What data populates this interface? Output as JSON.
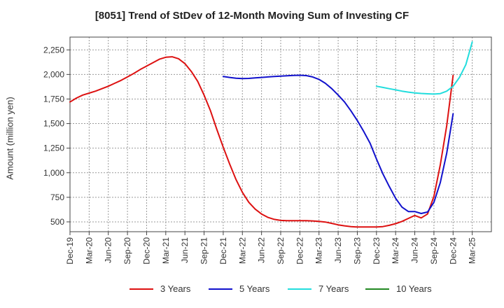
{
  "chart_data": {
    "type": "line",
    "title": "[8051]  Trend of StDev of 12-Month Moving Sum of Investing CF",
    "xlabel": "",
    "ylabel": "Amount (million yen)",
    "ylim": [
      400,
      2380
    ],
    "yticks": [
      500,
      750,
      1000,
      1250,
      1500,
      1750,
      2000,
      2250
    ],
    "ytick_labels": [
      "500",
      "750",
      "1,000",
      "1,250",
      "1,500",
      "1,750",
      "2,000",
      "2,250"
    ],
    "x_ticks": [
      "Dec-19",
      "Mar-20",
      "Jun-20",
      "Sep-20",
      "Dec-20",
      "Mar-21",
      "Jun-21",
      "Sep-21",
      "Dec-21",
      "Mar-22",
      "Jun-22",
      "Sep-22",
      "Dec-22",
      "Mar-23",
      "Jun-23",
      "Sep-23",
      "Dec-23",
      "Mar-24",
      "Jun-24",
      "Sep-24",
      "Dec-24",
      "Mar-25"
    ],
    "grid": true,
    "legend_position": "bottom",
    "series": [
      {
        "name": "3 Years",
        "color": "#dd1111",
        "values": [
          1720,
          1760,
          1790,
          1810,
          1830,
          1855,
          1880,
          1910,
          1940,
          1975,
          2010,
          2050,
          2085,
          2120,
          2155,
          2175,
          2180,
          2160,
          2110,
          2030,
          1930,
          1790,
          1630,
          1440,
          1260,
          1090,
          930,
          800,
          700,
          630,
          580,
          545,
          525,
          515,
          512,
          512,
          512,
          512,
          510,
          505,
          498,
          485,
          470,
          460,
          452,
          448,
          448,
          448,
          448,
          452,
          465,
          482,
          505,
          535,
          565,
          540,
          580,
          760,
          1080,
          1480,
          1990,
          null,
          null,
          null,
          null,
          null,
          null
        ]
      },
      {
        "name": "5 Years",
        "color": "#1111cc",
        "values": [
          null,
          null,
          null,
          null,
          null,
          null,
          null,
          null,
          null,
          null,
          null,
          null,
          null,
          null,
          null,
          null,
          null,
          null,
          null,
          null,
          null,
          null,
          null,
          null,
          1980,
          1970,
          1962,
          1958,
          1960,
          1965,
          1970,
          1975,
          1980,
          1983,
          1986,
          1990,
          1992,
          1988,
          1975,
          1950,
          1910,
          1855,
          1790,
          1720,
          1630,
          1530,
          1420,
          1300,
          1140,
          990,
          860,
          740,
          650,
          605,
          605,
          585,
          600,
          700,
          900,
          1200,
          1600,
          null,
          null,
          null,
          null,
          null,
          null
        ]
      },
      {
        "name": "7 Years",
        "color": "#22dddd",
        "values": [
          null,
          null,
          null,
          null,
          null,
          null,
          null,
          null,
          null,
          null,
          null,
          null,
          null,
          null,
          null,
          null,
          null,
          null,
          null,
          null,
          null,
          null,
          null,
          null,
          null,
          null,
          null,
          null,
          null,
          null,
          null,
          null,
          null,
          null,
          null,
          null,
          null,
          null,
          null,
          null,
          null,
          null,
          null,
          null,
          null,
          null,
          null,
          null,
          1880,
          1868,
          1855,
          1843,
          1830,
          1820,
          1812,
          1807,
          1803,
          1800,
          1805,
          1830,
          1880,
          1970,
          2100,
          2330,
          null,
          null,
          null
        ]
      },
      {
        "name": "10 Years",
        "color": "#228822",
        "values": []
      }
    ]
  }
}
